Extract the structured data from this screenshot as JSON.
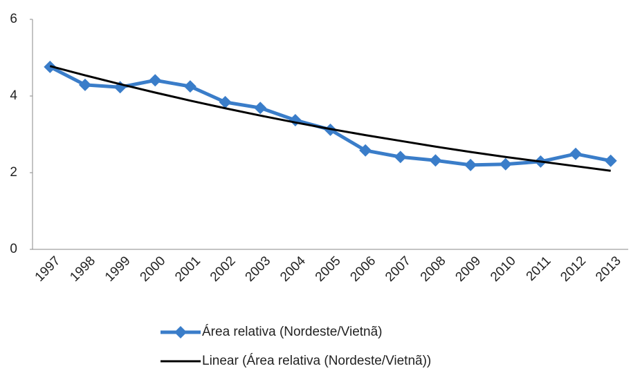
{
  "chart_data": {
    "type": "line",
    "categories": [
      "1997",
      "1998",
      "1999",
      "2000",
      "2001",
      "2002",
      "2003",
      "2004",
      "2005",
      "2006",
      "2007",
      "2008",
      "2009",
      "2010",
      "2011",
      "2012",
      "2013"
    ],
    "series": [
      {
        "name": "Área relativa (Nordeste/Vietnã)",
        "color": "#3a7dc9",
        "marker": "diamond",
        "values": [
          4.76,
          4.29,
          4.23,
          4.41,
          4.25,
          3.84,
          3.69,
          3.37,
          3.12,
          2.58,
          2.41,
          2.32,
          2.2,
          2.22,
          2.29,
          2.49,
          2.31
        ]
      },
      {
        "name": "Linear (Área relativa (Nordeste/Vietnã))",
        "color": "#000000",
        "marker": "none",
        "values": [
          4.78,
          4.54,
          4.31,
          4.09,
          3.88,
          3.68,
          3.49,
          3.31,
          3.14,
          2.98,
          2.83,
          2.68,
          2.54,
          2.41,
          2.29,
          2.17,
          2.05
        ]
      }
    ],
    "ylim": [
      0,
      6
    ],
    "yticks": [
      0,
      2,
      4,
      6
    ],
    "grid": false,
    "legend": "bottom"
  }
}
